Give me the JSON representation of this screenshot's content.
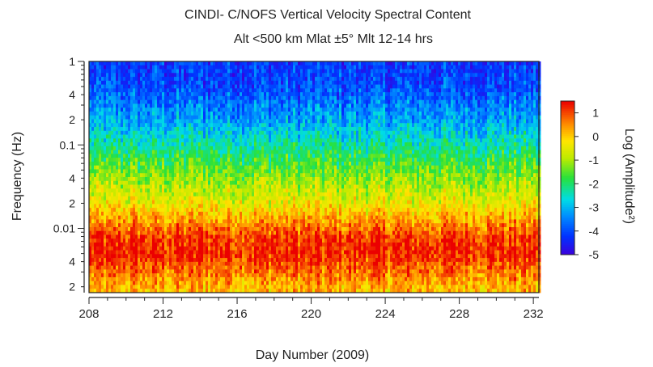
{
  "chart_data": {
    "type": "heatmap",
    "title": "CINDI- C/NOFS Vertical Velocity Spectral Content",
    "subtitle": "Alt <500 km Mlat ±5°  Mlt 12-14 hrs",
    "xlabel": "Day Number (2009)",
    "ylabel": "Frequency (Hz)",
    "xlim": [
      208,
      232.3
    ],
    "ylim": [
      0.0017,
      1.0
    ],
    "yscale": "log",
    "x_ticks": [
      208,
      212,
      216,
      220,
      224,
      228,
      232
    ],
    "y_major_ticks": [
      {
        "value": 1,
        "label": "1"
      },
      {
        "value": 0.1,
        "label": "0.1"
      },
      {
        "value": 0.01,
        "label": "0.01"
      }
    ],
    "y_minor_labeled": [
      {
        "value": 0.4,
        "label": "4"
      },
      {
        "value": 0.2,
        "label": "2"
      },
      {
        "value": 0.04,
        "label": "4"
      },
      {
        "value": 0.02,
        "label": "2"
      },
      {
        "value": 0.004,
        "label": "4"
      },
      {
        "value": 0.002,
        "label": "2"
      }
    ],
    "colorbar": {
      "label": "Log (Amplitude²)",
      "range": [
        -5,
        1.5
      ],
      "ticks": [
        1,
        0,
        -1,
        -2,
        -3,
        -4,
        -5
      ],
      "colormap": "rainbow"
    },
    "amplitude_profile": {
      "frequency_hz": [
        1.0,
        0.5,
        0.2,
        0.1,
        0.05,
        0.02,
        0.012,
        0.008,
        0.005,
        0.003,
        0.002
      ],
      "log_amplitude": [
        -4.2,
        -4.0,
        -3.2,
        -2.3,
        -1.4,
        -0.4,
        0.4,
        1.1,
        1.3,
        0.7,
        0.2
      ]
    }
  },
  "colors": {
    "axis": "#222222",
    "background": "#ffffff"
  }
}
